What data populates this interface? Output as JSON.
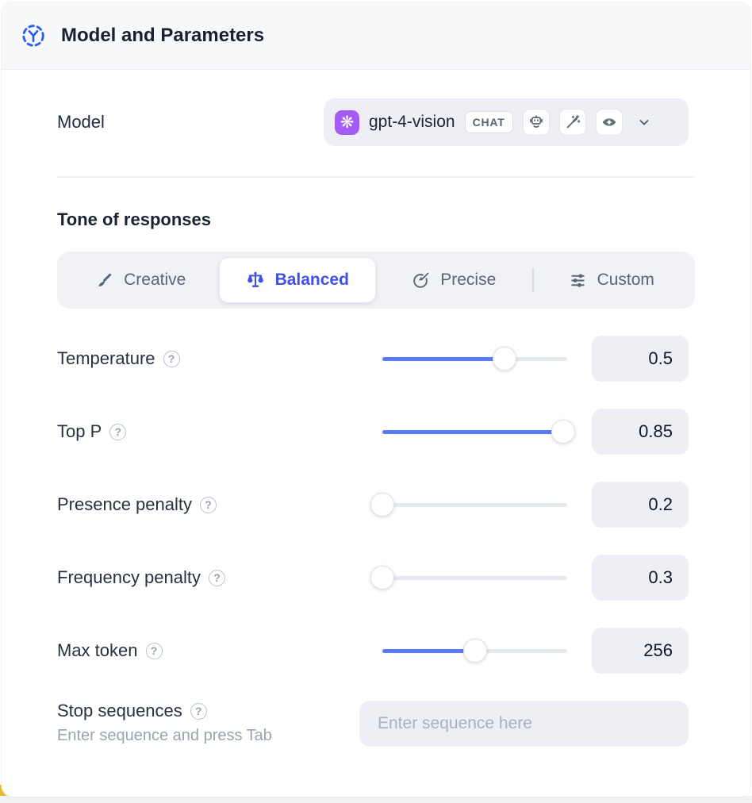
{
  "header": {
    "title": "Model and Parameters",
    "icon": "model-node-icon"
  },
  "model": {
    "label": "Model",
    "selected": {
      "provider": "openai",
      "provider_glyph": "❋",
      "name": "gpt-4-vision",
      "type_badge": "CHAT",
      "capability_icons": [
        "robot-icon",
        "magic-wand-icon",
        "vision-eye-icon"
      ]
    }
  },
  "tone": {
    "title": "Tone of responses",
    "options": [
      {
        "label": "Creative",
        "icon": "paintbrush-icon",
        "selected": false
      },
      {
        "label": "Balanced",
        "icon": "balance-scale-icon",
        "selected": true
      },
      {
        "label": "Precise",
        "icon": "target-arrow-icon",
        "selected": false
      },
      {
        "label": "Custom",
        "icon": "sliders-icon",
        "selected": false
      }
    ]
  },
  "parameters": [
    {
      "label": "Temperature",
      "value": "0.5",
      "fill_percent": 66
    },
    {
      "label": "Top P",
      "value": "0.85",
      "fill_percent": 98
    },
    {
      "label": "Presence penalty",
      "value": "0.2",
      "fill_percent": 0
    },
    {
      "label": "Frequency penalty",
      "value": "0.3",
      "fill_percent": 0
    },
    {
      "label": "Max token",
      "value": "256",
      "fill_percent": 50
    }
  ],
  "stop_sequences": {
    "label": "Stop sequences",
    "hint": "Enter sequence and press Tab",
    "placeholder": "Enter sequence here"
  },
  "misc": {
    "help_glyph": "?"
  },
  "colors": {
    "accent_blue": "#4050e8",
    "slider_blue": "#5b7cfa",
    "provider_purple": "#a55cf5",
    "field_bg": "#edeff4",
    "tab_bg": "#f0f2f6",
    "header_bg": "#f7f8fa",
    "corner_yellow": "#e3bd2a"
  }
}
